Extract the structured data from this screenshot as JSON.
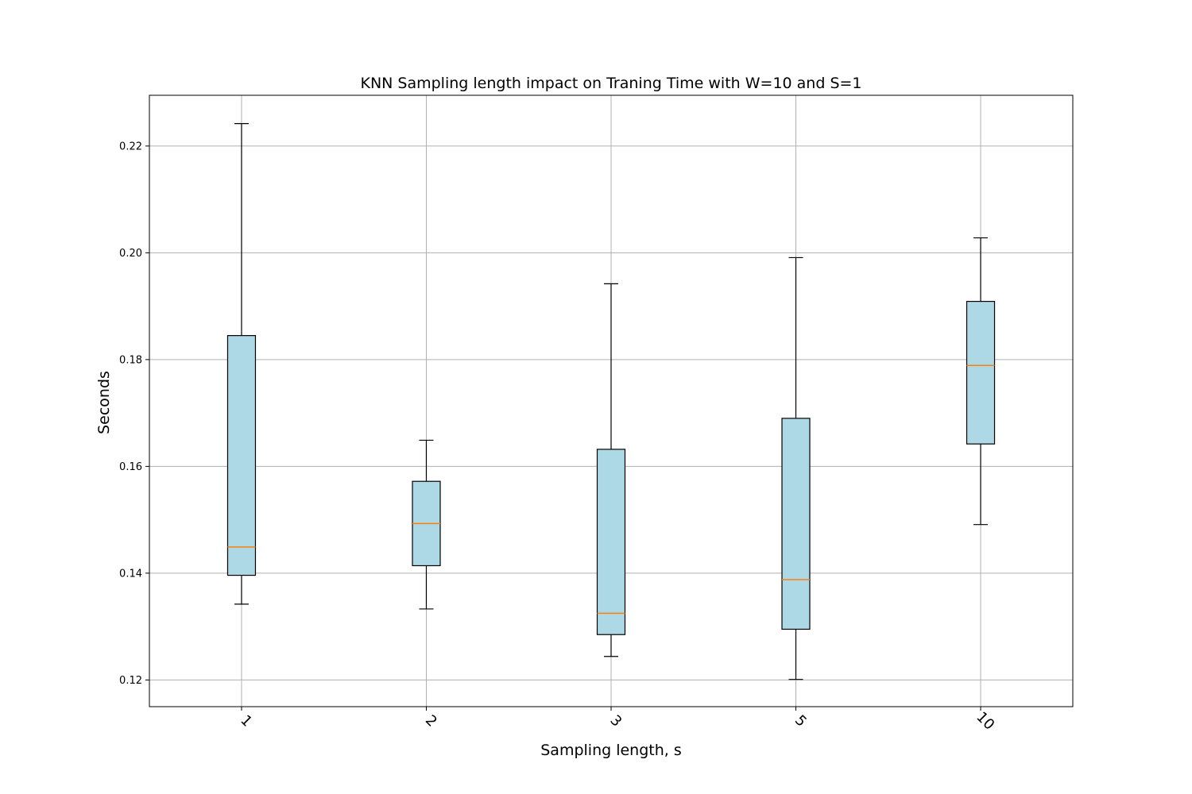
{
  "chart_data": {
    "type": "box",
    "title": "KNN Sampling length impact on Traning Time with W=10 and S=1",
    "xlabel": "Sampling length, s",
    "ylabel": "Seconds",
    "categories": [
      "1",
      "2",
      "3",
      "5",
      "10"
    ],
    "ylim": [
      0.115,
      0.2295
    ],
    "yticks": [
      0.12,
      0.14,
      0.16,
      0.18,
      0.2,
      0.22
    ],
    "ytick_labels": [
      "0.12",
      "0.14",
      "0.16",
      "0.18",
      "0.20",
      "0.22"
    ],
    "grid": true,
    "box_fill": "#add8e6",
    "median_color": "#ff7f0e",
    "boxes": [
      {
        "label": "1",
        "whisker_low": 0.1342,
        "q1": 0.1396,
        "median": 0.1449,
        "q3": 0.1845,
        "whisker_high": 0.2242
      },
      {
        "label": "2",
        "whisker_low": 0.1333,
        "q1": 0.1414,
        "median": 0.1493,
        "q3": 0.1572,
        "whisker_high": 0.1649
      },
      {
        "label": "3",
        "whisker_low": 0.1244,
        "q1": 0.1285,
        "median": 0.1325,
        "q3": 0.1632,
        "whisker_high": 0.1942
      },
      {
        "label": "5",
        "whisker_low": 0.1201,
        "q1": 0.1295,
        "median": 0.1388,
        "q3": 0.169,
        "whisker_high": 0.1991
      },
      {
        "label": "10",
        "whisker_low": 0.1491,
        "q1": 0.1642,
        "median": 0.1789,
        "q3": 0.1909,
        "whisker_high": 0.2028
      }
    ]
  }
}
